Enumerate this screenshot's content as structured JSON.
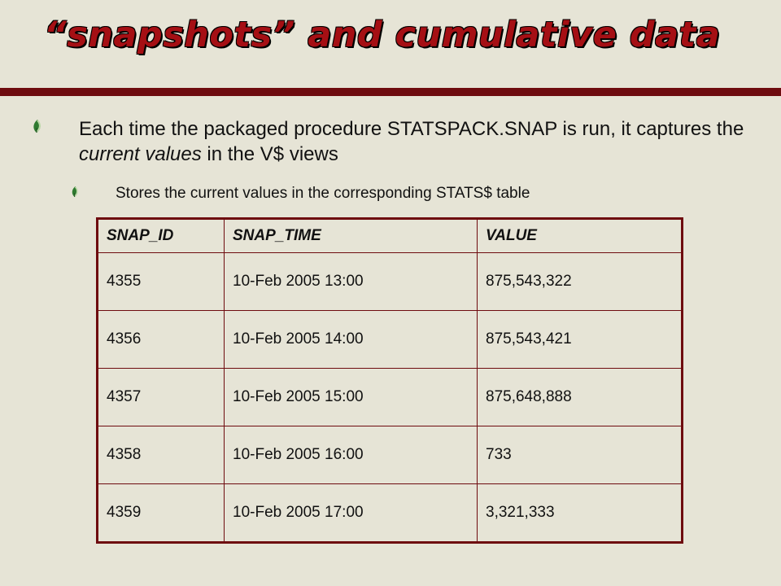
{
  "slide": {
    "title": "“snapshots” and cumulative data",
    "colors": {
      "background": "#e6e4d6",
      "title": "#a50f14",
      "rule": "#6e0b0f",
      "table_border": "#6e0b0f"
    },
    "bullet_icon": "leaf-bullet-icon",
    "bullet1": {
      "text_before": "Each time the packaged procedure STATSPACK.SNAP is run, it captures the ",
      "emphasis": "current values",
      "text_after": " in the V$ views"
    },
    "bullet2": {
      "text": "Stores the current values in the corresponding STATS$ table"
    }
  },
  "table": {
    "headers": [
      "SNAP_ID",
      "SNAP_TIME",
      "VALUE"
    ],
    "rows": [
      [
        "4355",
        "10-Feb 2005 13:00",
        "875,543,322"
      ],
      [
        "4356",
        "10-Feb 2005 14:00",
        "875,543,421"
      ],
      [
        "4357",
        "10-Feb 2005 15:00",
        "875,648,888"
      ],
      [
        "4358",
        "10-Feb 2005 16:00",
        "733"
      ],
      [
        "4359",
        "10-Feb 2005 17:00",
        "3,321,333"
      ]
    ]
  }
}
